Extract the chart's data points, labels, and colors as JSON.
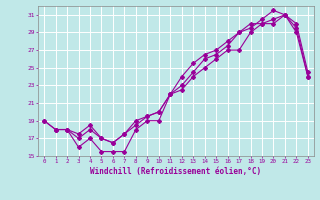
{
  "xlabel": "Windchill (Refroidissement éolien,°C)",
  "background_color": "#c0e8e8",
  "line_color": "#990099",
  "grid_color": "#b8dede",
  "xlim": [
    -0.5,
    23.5
  ],
  "ylim": [
    15,
    32
  ],
  "xticks": [
    0,
    1,
    2,
    3,
    4,
    5,
    6,
    7,
    8,
    9,
    10,
    11,
    12,
    13,
    14,
    15,
    16,
    17,
    18,
    19,
    20,
    21,
    22,
    23
  ],
  "yticks": [
    15,
    17,
    19,
    21,
    23,
    25,
    27,
    29,
    31
  ],
  "line1_x": [
    0,
    1,
    2,
    3,
    4,
    5,
    6,
    7,
    8,
    9,
    10,
    11,
    12,
    13,
    14,
    15,
    16,
    17,
    18,
    19,
    20,
    21,
    22,
    23
  ],
  "line1_y": [
    19,
    18,
    18,
    16,
    17,
    15.5,
    15.5,
    15.5,
    18,
    19,
    19,
    22,
    22.5,
    24,
    25,
    26,
    27,
    27,
    29,
    30,
    30,
    31,
    29,
    24
  ],
  "line2_x": [
    1,
    2,
    3,
    4,
    5,
    6,
    7,
    8,
    9,
    10,
    11,
    12,
    13,
    14,
    15,
    16,
    17,
    18,
    19,
    20,
    21,
    22,
    23
  ],
  "line2_y": [
    18,
    18,
    17,
    18,
    17,
    16.5,
    17.5,
    18.5,
    19.5,
    20,
    22,
    24,
    25.5,
    26.5,
    27,
    28,
    29,
    29.5,
    30.5,
    31.5,
    31,
    30,
    24.5
  ],
  "line3_x": [
    0,
    1,
    2,
    3,
    4,
    5,
    6,
    7,
    8,
    9,
    10,
    11,
    12,
    13,
    14,
    15,
    16,
    17,
    18,
    19,
    20,
    21,
    22,
    23
  ],
  "line3_y": [
    19,
    18,
    18,
    17.5,
    18.5,
    17,
    16.5,
    17.5,
    19,
    19.5,
    20,
    22,
    23,
    24.5,
    26,
    26.5,
    27.5,
    29,
    30,
    30,
    30.5,
    31,
    29.5,
    24
  ]
}
